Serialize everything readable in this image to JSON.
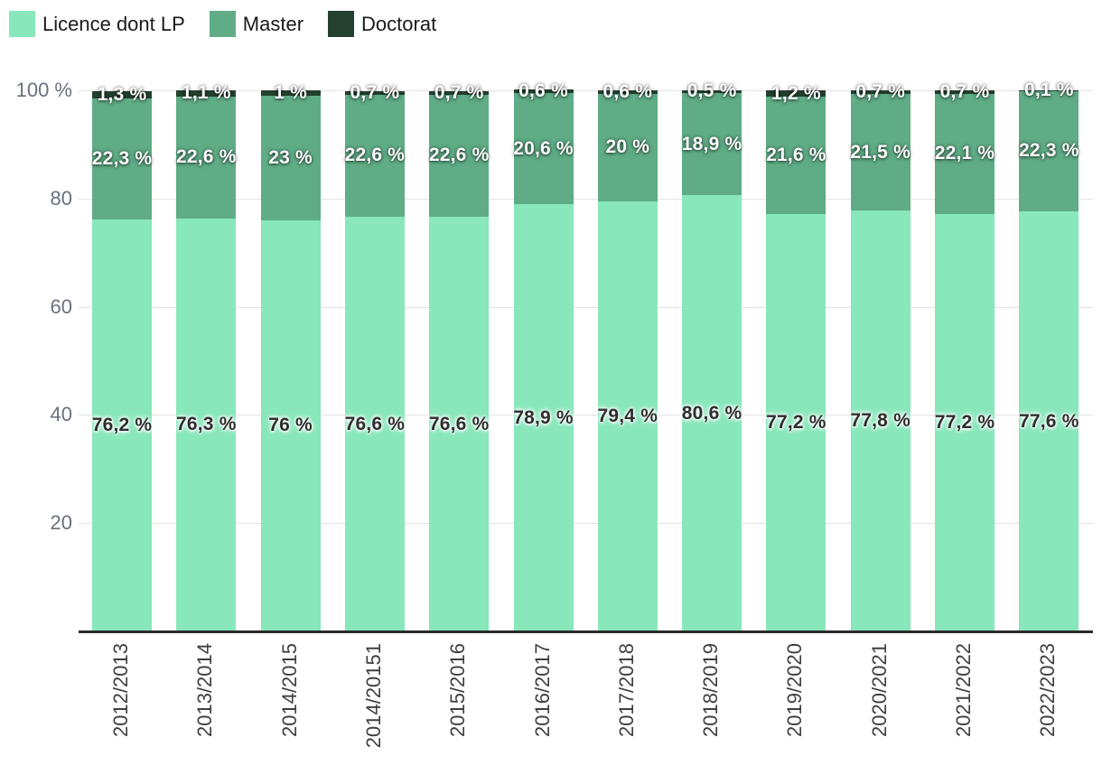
{
  "chart_data": {
    "type": "bar",
    "stacked": true,
    "orientation": "vertical",
    "unit": "%",
    "categories": [
      "2012/2013",
      "2013/2014",
      "2014/2015",
      "2014/20151",
      "2015/2016",
      "2016/2017",
      "2017/2018",
      "2018/2019",
      "2019/2020",
      "2020/2021",
      "2021/2022",
      "2022/2023"
    ],
    "series": [
      {
        "name": "Licence dont LP",
        "color": "#88e7bb",
        "label_style": "dark",
        "values": [
          76.2,
          76.3,
          76,
          76.6,
          76.6,
          78.9,
          79.4,
          80.6,
          77.2,
          77.8,
          77.2,
          77.6
        ],
        "labels": [
          "76,2 %",
          "76,3 %",
          "76 %",
          "76,6 %",
          "76,6 %",
          "78,9 %",
          "79,4 %",
          "80,6 %",
          "77,2 %",
          "77,8 %",
          "77,2 %",
          "77,6 %"
        ]
      },
      {
        "name": "Master",
        "color": "#5fac86",
        "label_style": "light",
        "values": [
          22.3,
          22.6,
          23,
          22.6,
          22.6,
          20.6,
          20,
          18.9,
          21.6,
          21.5,
          22.1,
          22.3
        ],
        "labels": [
          "22,3 %",
          "22,6 %",
          "23 %",
          "22,6 %",
          "22,6 %",
          "20,6 %",
          "20 %",
          "18,9 %",
          "21,6 %",
          "21,5 %",
          "22,1 %",
          "22,3 %"
        ]
      },
      {
        "name": "Doctorat",
        "color": "#24402f",
        "label_style": "light",
        "values": [
          1.3,
          1.1,
          1,
          0.7,
          0.7,
          0.6,
          0.6,
          0.5,
          1.2,
          0.7,
          0.7,
          0.1
        ],
        "labels": [
          "1,3 %",
          "1,1 %",
          "1 %",
          "0,7 %",
          "0,7 %",
          "0,6 %",
          "0,6 %",
          "0,5 %",
          "1,2 %",
          "0,7 %",
          "0,7 %",
          "0,1 %"
        ]
      }
    ],
    "legend": [
      "Licence dont LP",
      "Master",
      "Doctorat"
    ],
    "legend_position": "top-left",
    "grid": true,
    "y_axis": {
      "max": 100,
      "ticks": [
        {
          "value": 100,
          "label": "100 %"
        },
        {
          "value": 80,
          "label": "80"
        },
        {
          "value": 60,
          "label": "60"
        },
        {
          "value": 40,
          "label": "40"
        },
        {
          "value": 20,
          "label": "20"
        }
      ]
    }
  },
  "colors": {
    "background": "#ffffff",
    "gridline": "#e3e3e3",
    "baseline": "#2b2b2b",
    "y_tick_text": "#69707f",
    "x_tick_text": "#3f3f3f",
    "legend_text": "#1a1a1a"
  }
}
